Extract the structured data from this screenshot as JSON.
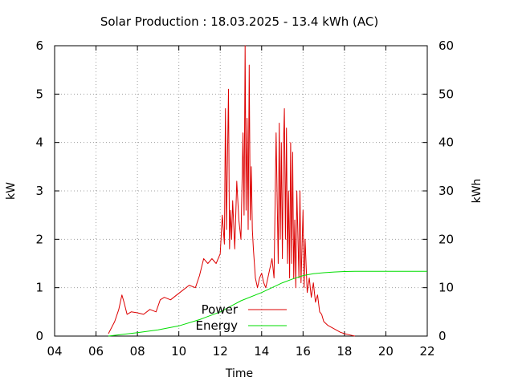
{
  "chart_data": {
    "type": "line",
    "title": "Solar Production : 18.03.2025 - 13.4 kWh (AC)",
    "xlabel": "Time",
    "ylabel_left": "kW",
    "ylabel_right": "kWh",
    "xlim": [
      4,
      22
    ],
    "ylim_left": [
      0,
      6
    ],
    "ylim_right": [
      0,
      60
    ],
    "x_ticks": [
      4,
      6,
      8,
      10,
      12,
      14,
      16,
      18,
      20,
      22
    ],
    "x_tick_labels": [
      "04",
      "06",
      "08",
      "10",
      "12",
      "14",
      "16",
      "18",
      "20",
      "22"
    ],
    "y_ticks_left": [
      "0",
      "1",
      "2",
      "3",
      "4",
      "5",
      "6"
    ],
    "y_ticks_right": [
      "0",
      "10",
      "20",
      "30",
      "40",
      "50",
      "60"
    ],
    "grid": true,
    "legend_position": "inside-bottom-center",
    "series": [
      {
        "name": "Power",
        "axis": "left",
        "color": "#dd0000",
        "x": [
          6.6,
          6.9,
          7.1,
          7.25,
          7.35,
          7.5,
          7.7,
          8.0,
          8.3,
          8.6,
          8.9,
          9.1,
          9.3,
          9.6,
          9.9,
          10.2,
          10.5,
          10.8,
          11.0,
          11.2,
          11.4,
          11.6,
          11.8,
          12.0,
          12.1,
          12.2,
          12.25,
          12.3,
          12.4,
          12.45,
          12.5,
          12.55,
          12.6,
          12.7,
          12.8,
          12.9,
          13.0,
          13.1,
          13.15,
          13.2,
          13.25,
          13.3,
          13.35,
          13.4,
          13.45,
          13.5,
          13.55,
          13.6,
          13.7,
          13.8,
          13.9,
          14.0,
          14.1,
          14.2,
          14.3,
          14.4,
          14.5,
          14.6,
          14.7,
          14.8,
          14.85,
          14.9,
          14.95,
          15.0,
          15.05,
          15.1,
          15.15,
          15.2,
          15.25,
          15.3,
          15.35,
          15.4,
          15.45,
          15.5,
          15.55,
          15.6,
          15.65,
          15.7,
          15.8,
          15.85,
          15.9,
          16.0,
          16.05,
          16.1,
          16.2,
          16.3,
          16.4,
          16.5,
          16.6,
          16.7,
          16.8,
          16.9,
          17.0,
          17.2,
          17.5,
          17.8,
          18.0,
          18.3,
          18.5
        ],
        "y": [
          0.05,
          0.3,
          0.55,
          0.85,
          0.7,
          0.45,
          0.5,
          0.48,
          0.45,
          0.55,
          0.5,
          0.75,
          0.8,
          0.75,
          0.85,
          0.95,
          1.05,
          1.0,
          1.25,
          1.6,
          1.5,
          1.6,
          1.5,
          1.7,
          2.5,
          1.9,
          4.7,
          2.2,
          5.1,
          1.8,
          2.6,
          2.0,
          2.8,
          1.8,
          3.2,
          2.4,
          2.0,
          4.2,
          2.5,
          6.0,
          2.6,
          4.5,
          2.2,
          5.6,
          2.4,
          3.5,
          2.2,
          1.8,
          1.2,
          1.0,
          1.2,
          1.3,
          1.1,
          1.0,
          1.2,
          1.4,
          1.6,
          1.2,
          4.2,
          1.5,
          4.4,
          2.0,
          4.0,
          1.6,
          3.8,
          4.7,
          2.0,
          4.3,
          1.5,
          3.0,
          1.2,
          4.0,
          1.5,
          3.8,
          1.2,
          2.4,
          1.0,
          3.0,
          1.2,
          3.0,
          1.1,
          2.6,
          1.0,
          2.0,
          0.9,
          1.2,
          0.8,
          1.1,
          0.7,
          0.85,
          0.5,
          0.45,
          0.3,
          0.22,
          0.15,
          0.08,
          0.05,
          0.02,
          0.0
        ]
      },
      {
        "name": "Energy",
        "axis": "right",
        "color": "#00dd00",
        "x": [
          6.6,
          7.0,
          8.0,
          9.0,
          10.0,
          11.0,
          12.0,
          13.0,
          14.0,
          15.0,
          15.5,
          16.0,
          16.5,
          17.0,
          17.5,
          18.0,
          18.5,
          22.0
        ],
        "y": [
          0.0,
          0.2,
          0.7,
          1.3,
          2.1,
          3.4,
          5.0,
          7.3,
          9.0,
          11.0,
          11.8,
          12.5,
          12.9,
          13.1,
          13.25,
          13.35,
          13.4,
          13.4
        ]
      }
    ]
  }
}
